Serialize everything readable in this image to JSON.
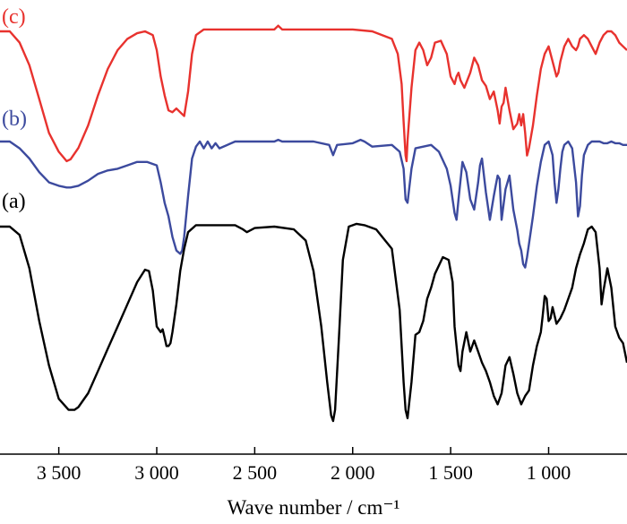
{
  "chart_data": {
    "type": "line",
    "xlabel": "Wave number / cm⁻¹",
    "xlim": [
      3800,
      600
    ],
    "x_ticks": [
      3500,
      3000,
      2500,
      2000,
      1500,
      1000
    ],
    "x_tick_labels": [
      "3 500",
      "3 000",
      "2 500",
      "2 000",
      "1 500",
      "1 000"
    ],
    "grid": false,
    "series": [
      {
        "name": "(c)",
        "color": "#e8322e",
        "x": [
          3800,
          3750,
          3700,
          3650,
          3600,
          3550,
          3500,
          3460,
          3440,
          3400,
          3350,
          3300,
          3250,
          3200,
          3150,
          3100,
          3060,
          3020,
          3000,
          2980,
          2960,
          2940,
          2920,
          2900,
          2880,
          2860,
          2840,
          2820,
          2800,
          2760,
          2700,
          2600,
          2500,
          2400,
          2380,
          2360,
          2300,
          2200,
          2100,
          2000,
          1900,
          1800,
          1770,
          1750,
          1740,
          1730,
          1725,
          1720,
          1700,
          1680,
          1660,
          1640,
          1620,
          1600,
          1580,
          1550,
          1520,
          1500,
          1480,
          1470,
          1460,
          1450,
          1430,
          1400,
          1380,
          1360,
          1340,
          1320,
          1300,
          1280,
          1260,
          1250,
          1240,
          1230,
          1220,
          1200,
          1180,
          1160,
          1150,
          1140,
          1130,
          1120,
          1110,
          1100,
          1080,
          1060,
          1040,
          1020,
          1000,
          980,
          960,
          950,
          940,
          920,
          900,
          880,
          860,
          850,
          840,
          820,
          800,
          780,
          760,
          740,
          720,
          700,
          680,
          660,
          640,
          620,
          600
        ],
        "y": [
          0.0,
          0.0,
          -0.3,
          -0.9,
          -1.8,
          -2.7,
          -3.2,
          -3.45,
          -3.4,
          -3.1,
          -2.5,
          -1.7,
          -1.0,
          -0.5,
          -0.2,
          -0.05,
          0.0,
          -0.1,
          -0.5,
          -1.2,
          -1.7,
          -2.1,
          -2.15,
          -2.05,
          -2.15,
          -2.25,
          -1.6,
          -0.6,
          -0.1,
          0.05,
          0.05,
          0.05,
          0.05,
          0.05,
          0.15,
          0.05,
          0.05,
          0.05,
          0.05,
          0.05,
          0.0,
          -0.2,
          -0.6,
          -1.4,
          -2.4,
          -3.3,
          -3.45,
          -2.9,
          -1.5,
          -0.5,
          -0.3,
          -0.5,
          -0.9,
          -0.7,
          -0.3,
          -0.25,
          -0.6,
          -1.2,
          -1.4,
          -1.2,
          -1.1,
          -1.3,
          -1.5,
          -1.1,
          -0.7,
          -0.9,
          -1.3,
          -1.45,
          -1.8,
          -1.6,
          -2.1,
          -2.45,
          -2.0,
          -1.9,
          -1.5,
          -2.1,
          -2.6,
          -2.45,
          -2.2,
          -2.5,
          -2.2,
          -2.7,
          -3.3,
          -3.1,
          -2.5,
          -1.7,
          -1.0,
          -0.6,
          -0.4,
          -0.8,
          -1.2,
          -1.1,
          -0.8,
          -0.4,
          -0.2,
          -0.4,
          -0.5,
          -0.4,
          -0.2,
          -0.1,
          -0.2,
          -0.4,
          -0.6,
          -0.3,
          -0.1,
          -0.0,
          0.0,
          -0.1,
          -0.3,
          -0.4,
          -0.5
        ]
      },
      {
        "name": "(b)",
        "color": "#3c4a9e",
        "x": [
          3800,
          3750,
          3700,
          3650,
          3600,
          3550,
          3500,
          3460,
          3440,
          3400,
          3350,
          3300,
          3250,
          3200,
          3150,
          3100,
          3050,
          3000,
          2980,
          2960,
          2940,
          2920,
          2900,
          2880,
          2870,
          2860,
          2840,
          2820,
          2800,
          2780,
          2760,
          2740,
          2720,
          2700,
          2680,
          2600,
          2500,
          2400,
          2380,
          2360,
          2300,
          2200,
          2120,
          2100,
          2080,
          2000,
          1960,
          1940,
          1900,
          1800,
          1760,
          1740,
          1730,
          1720,
          1700,
          1680,
          1600,
          1560,
          1520,
          1500,
          1480,
          1470,
          1460,
          1440,
          1420,
          1400,
          1380,
          1360,
          1350,
          1340,
          1320,
          1300,
          1280,
          1270,
          1260,
          1250,
          1240,
          1220,
          1200,
          1180,
          1160,
          1150,
          1140,
          1130,
          1120,
          1110,
          1100,
          1080,
          1060,
          1040,
          1020,
          1000,
          980,
          970,
          960,
          950,
          940,
          930,
          920,
          900,
          880,
          860,
          850,
          840,
          830,
          820,
          800,
          780,
          760,
          740,
          720,
          700,
          680,
          660,
          640,
          620,
          600
        ],
        "y": [
          0.0,
          0.0,
          -0.2,
          -0.5,
          -0.9,
          -1.2,
          -1.3,
          -1.35,
          -1.35,
          -1.3,
          -1.15,
          -0.95,
          -0.85,
          -0.8,
          -0.7,
          -0.6,
          -0.6,
          -0.7,
          -1.2,
          -1.8,
          -2.2,
          -2.8,
          -3.2,
          -3.3,
          -3.2,
          -2.8,
          -1.6,
          -0.5,
          -0.15,
          -0.0,
          -0.2,
          -0.0,
          -0.2,
          -0.05,
          -0.2,
          0.0,
          0.0,
          0.0,
          0.05,
          0.0,
          0.0,
          0.0,
          -0.1,
          -0.4,
          -0.1,
          -0.05,
          0.05,
          0.0,
          -0.15,
          -0.1,
          -0.3,
          -0.8,
          -1.7,
          -1.8,
          -0.8,
          -0.2,
          -0.1,
          -0.3,
          -0.8,
          -1.3,
          -2.1,
          -2.3,
          -1.7,
          -0.6,
          -0.9,
          -1.7,
          -2.0,
          -1.2,
          -0.7,
          -0.5,
          -1.5,
          -2.3,
          -1.6,
          -1.3,
          -1.0,
          -1.1,
          -2.3,
          -1.4,
          -1.0,
          -2.0,
          -2.6,
          -3.0,
          -3.2,
          -3.6,
          -3.7,
          -3.4,
          -3.0,
          -2.2,
          -1.3,
          -0.6,
          -0.1,
          0.0,
          -0.4,
          -1.2,
          -1.8,
          -1.4,
          -0.8,
          -0.3,
          -0.1,
          0.0,
          -0.2,
          -1.2,
          -2.2,
          -1.9,
          -1.0,
          -0.4,
          -0.1,
          0.0,
          0.0,
          0.0,
          -0.05,
          -0.05,
          0.0,
          -0.05,
          -0.05,
          -0.1,
          -0.1
        ]
      },
      {
        "name": "(a)",
        "color": "#000000",
        "x": [
          3800,
          3750,
          3700,
          3650,
          3600,
          3550,
          3500,
          3450,
          3420,
          3400,
          3350,
          3300,
          3250,
          3200,
          3150,
          3100,
          3060,
          3040,
          3020,
          3000,
          2980,
          2970,
          2960,
          2950,
          2940,
          2930,
          2920,
          2900,
          2880,
          2860,
          2840,
          2800,
          2700,
          2600,
          2560,
          2540,
          2500,
          2400,
          2300,
          2240,
          2200,
          2160,
          2130,
          2110,
          2100,
          2090,
          2070,
          2050,
          2020,
          1980,
          1940,
          1880,
          1800,
          1760,
          1740,
          1730,
          1720,
          1700,
          1680,
          1660,
          1640,
          1620,
          1600,
          1580,
          1540,
          1510,
          1490,
          1480,
          1460,
          1450,
          1440,
          1420,
          1400,
          1380,
          1360,
          1340,
          1320,
          1300,
          1280,
          1260,
          1240,
          1220,
          1200,
          1180,
          1160,
          1140,
          1120,
          1100,
          1080,
          1060,
          1040,
          1030,
          1020,
          1010,
          1000,
          990,
          980,
          960,
          940,
          920,
          900,
          880,
          860,
          840,
          820,
          800,
          780,
          760,
          740,
          730,
          720,
          700,
          680,
          660,
          640,
          620,
          600
        ],
        "y": [
          0.0,
          0.0,
          -0.3,
          -1.5,
          -3.4,
          -5.0,
          -6.2,
          -6.6,
          -6.6,
          -6.5,
          -6.0,
          -5.2,
          -4.4,
          -3.6,
          -2.8,
          -2.0,
          -1.55,
          -1.6,
          -2.3,
          -3.6,
          -3.8,
          -3.7,
          -4.0,
          -4.3,
          -4.3,
          -4.2,
          -3.8,
          -2.8,
          -1.6,
          -0.8,
          -0.2,
          0.05,
          0.05,
          0.05,
          -0.1,
          -0.2,
          -0.05,
          0.0,
          -0.1,
          -0.5,
          -1.6,
          -3.6,
          -5.6,
          -6.8,
          -7.0,
          -6.6,
          -4.0,
          -1.2,
          0.0,
          0.1,
          0.05,
          -0.1,
          -0.8,
          -3.0,
          -5.6,
          -6.6,
          -6.9,
          -5.6,
          -3.9,
          -3.8,
          -3.4,
          -2.6,
          -2.2,
          -1.7,
          -1.1,
          -1.2,
          -2.0,
          -3.6,
          -5.0,
          -5.2,
          -4.5,
          -3.8,
          -4.5,
          -4.1,
          -4.5,
          -4.9,
          -5.2,
          -5.6,
          -6.1,
          -6.4,
          -6.0,
          -5.0,
          -4.7,
          -5.3,
          -6.0,
          -6.4,
          -6.1,
          -5.9,
          -5.0,
          -4.3,
          -3.8,
          -3.2,
          -2.5,
          -2.6,
          -3.4,
          -3.3,
          -2.9,
          -3.5,
          -3.3,
          -3.0,
          -2.6,
          -2.2,
          -1.5,
          -1.0,
          -0.6,
          -0.1,
          0.0,
          -0.2,
          -1.5,
          -2.8,
          -2.3,
          -1.5,
          -2.2,
          -3.6,
          -4.0,
          -4.2,
          -4.9
        ]
      }
    ]
  }
}
